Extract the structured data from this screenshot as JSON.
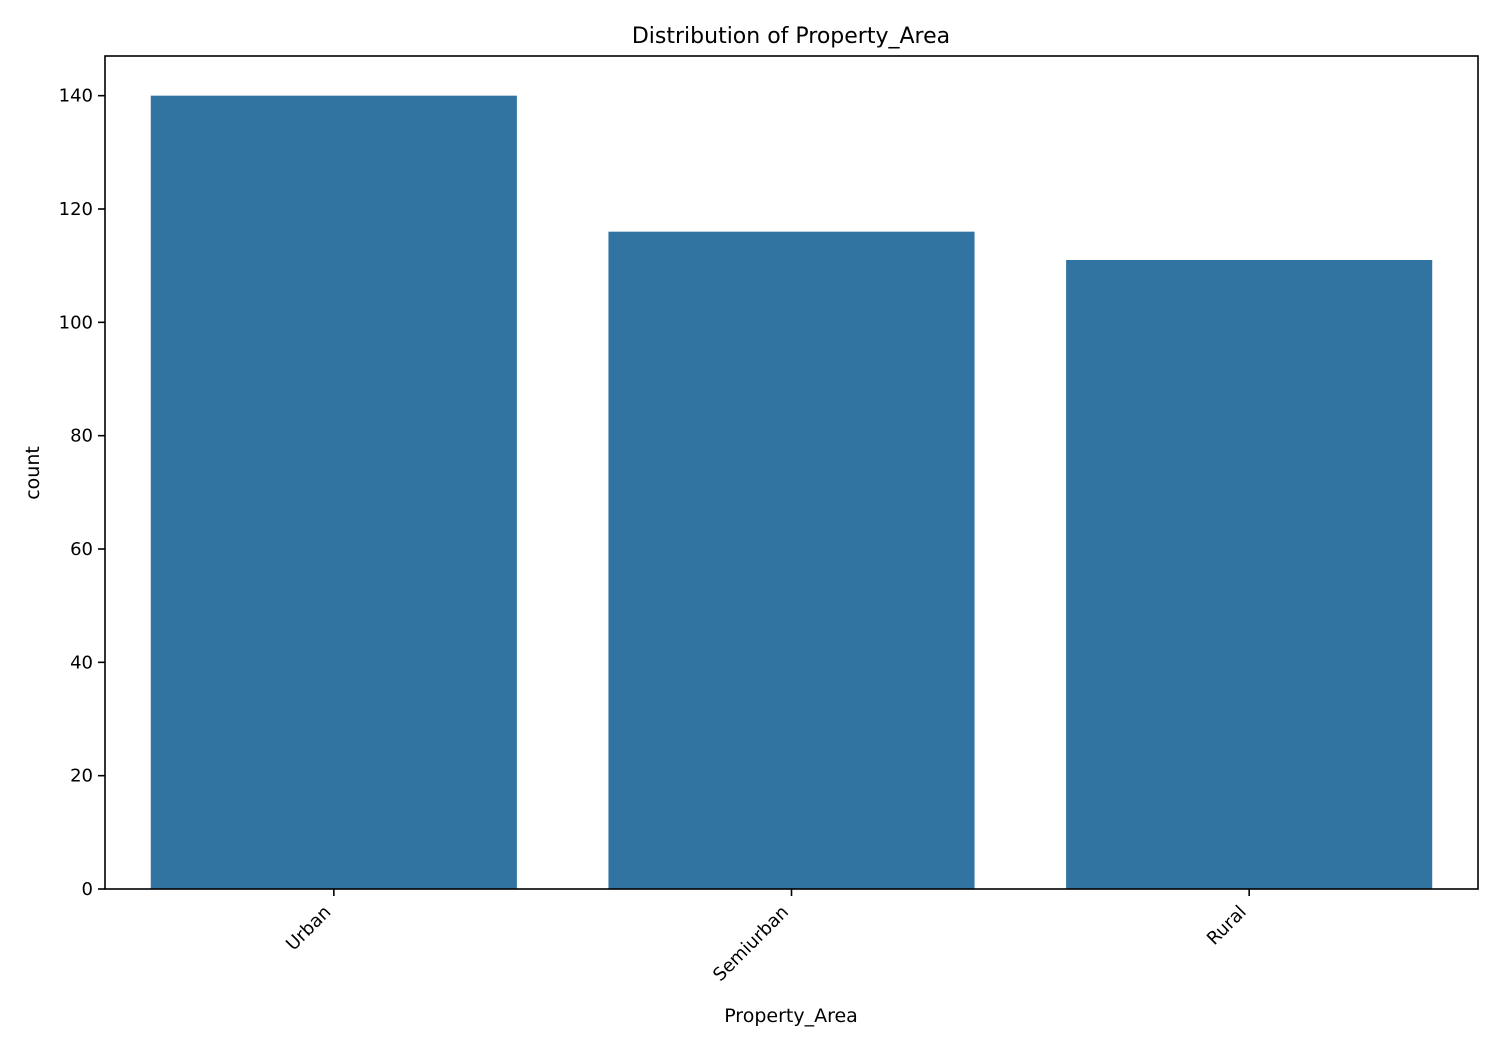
{
  "chart_data": {
    "type": "bar",
    "title": "Distribution of Property_Area",
    "xlabel": "Property_Area",
    "ylabel": "count",
    "categories": [
      "Urban",
      "Semiurban",
      "Rural"
    ],
    "values": [
      140,
      116,
      111
    ],
    "ylim": [
      0,
      147
    ],
    "yticks": [
      0,
      20,
      40,
      60,
      80,
      100,
      120,
      140
    ],
    "bar_color": "#3274a1",
    "grid": false
  }
}
